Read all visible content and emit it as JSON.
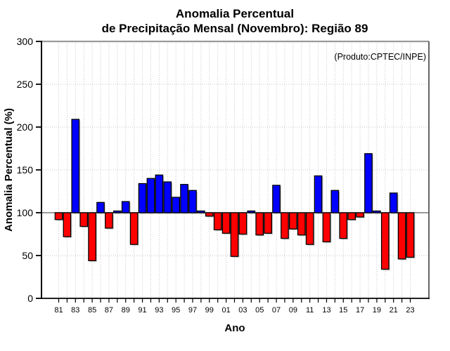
{
  "title": {
    "line1": "Anomalia Percentual",
    "line2": "de Precipitação Mensal (Novembro): Região 89"
  },
  "annotation": {
    "text": "(Produto:CPTEC/INPE)",
    "color": "#8c8c8c"
  },
  "axes": {
    "xlabel": "Ano",
    "ylabel": "Anomalia Percentual (%)"
  },
  "chart_data": {
    "type": "bar",
    "title": "Anomalia Percentual de Precipitação Mensal (Novembro): Região 89",
    "xlabel": "Ano",
    "ylabel": "Anomalia Percentual (%)",
    "ylim": [
      0,
      300
    ],
    "yticks": [
      0,
      50,
      100,
      150,
      200,
      250,
      300
    ],
    "baseline": 100,
    "grid": "dotted",
    "legend": "none",
    "bar_color_above": "#0000FF",
    "bar_color_below": "#FF0000",
    "grid_color": "#c4c4c4",
    "baseline_color": "#8c8c8c",
    "years": [
      1981,
      1982,
      1983,
      1984,
      1985,
      1986,
      1987,
      1988,
      1989,
      1990,
      1991,
      1992,
      1993,
      1994,
      1995,
      1996,
      1997,
      1998,
      1999,
      2000,
      2001,
      2002,
      2003,
      2004,
      2005,
      2006,
      2007,
      2008,
      2009,
      2010,
      2011,
      2012,
      2013,
      2014,
      2015,
      2016,
      2017,
      2018,
      2019,
      2020,
      2021,
      2022,
      2023
    ],
    "values": [
      92,
      72,
      209,
      84,
      44,
      112,
      82,
      102,
      113,
      63,
      134,
      140,
      144,
      136,
      118,
      133,
      126,
      102,
      96,
      80,
      76,
      49,
      75,
      102,
      74,
      76,
      132,
      70,
      81,
      74,
      63,
      143,
      66,
      126,
      70,
      92,
      95,
      169,
      102,
      34,
      123,
      46,
      48
    ],
    "xtick_labels": [
      "81",
      "83",
      "85",
      "87",
      "89",
      "91",
      "93",
      "95",
      "97",
      "99",
      "01",
      "03",
      "05",
      "07",
      "09",
      "11",
      "13",
      "15",
      "17",
      "19",
      "21",
      "23"
    ]
  }
}
